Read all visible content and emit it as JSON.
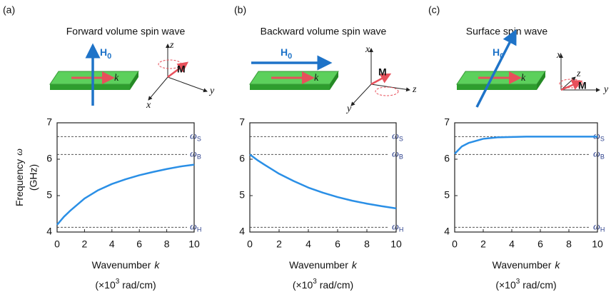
{
  "chart_data": [
    {
      "type": "line",
      "panel": "(a)",
      "title": "Forward volume spin wave",
      "field_label": {
        "symbol": "H",
        "sub": "0"
      },
      "wave_label": "k",
      "moment_label": "M",
      "coord_labels": [
        "z",
        "y",
        "x"
      ],
      "y_label": {
        "text": "Frequency",
        "symbol": "ω",
        "unit": "(GHz)"
      },
      "x_label": {
        "text": "Wavenumber",
        "symbol": "k",
        "unit_pre": "(×10",
        "unit_sup": "3",
        "unit_post": " rad/cm)"
      },
      "x": [
        0,
        0.5,
        1,
        2,
        3,
        4,
        5,
        6,
        7,
        8,
        9,
        10
      ],
      "series": [
        {
          "color": "#2a8fe6",
          "values": [
            4.2,
            4.42,
            4.6,
            4.92,
            5.15,
            5.32,
            5.45,
            5.56,
            5.65,
            5.73,
            5.8,
            5.85
          ]
        }
      ],
      "ref_lines": [
        {
          "symbol": "ω",
          "sub": "S",
          "value": 6.62
        },
        {
          "symbol": "ω",
          "sub": "B",
          "value": 6.13
        },
        {
          "symbol": "ω",
          "sub": "H",
          "value": 4.13
        }
      ],
      "xlim": [
        0,
        10
      ],
      "xticks": [
        0,
        2,
        4,
        6,
        8,
        10
      ],
      "ylim": [
        4,
        7
      ],
      "yticks": [
        4,
        5,
        6,
        7
      ]
    },
    {
      "type": "line",
      "panel": "(b)",
      "title": "Backward volume spin wave",
      "field_label": {
        "symbol": "H",
        "sub": "0"
      },
      "wave_label": "k",
      "moment_label": "M",
      "coord_labels": [
        "x",
        "z",
        "y"
      ],
      "x_label": {
        "text": "Wavenumber",
        "symbol": "k",
        "unit_pre": "(×10",
        "unit_sup": "3",
        "unit_post": " rad/cm)"
      },
      "x": [
        0,
        0.5,
        1,
        2,
        3,
        4,
        5,
        6,
        7,
        8,
        9,
        10
      ],
      "series": [
        {
          "color": "#2a8fe6",
          "values": [
            6.13,
            5.98,
            5.85,
            5.6,
            5.4,
            5.22,
            5.08,
            4.96,
            4.86,
            4.78,
            4.71,
            4.65
          ]
        }
      ],
      "ref_lines": [
        {
          "symbol": "ω",
          "sub": "S",
          "value": 6.62
        },
        {
          "symbol": "ω",
          "sub": "B",
          "value": 6.13
        },
        {
          "symbol": "ω",
          "sub": "H",
          "value": 4.13
        }
      ],
      "xlim": [
        0,
        10
      ],
      "xticks": [
        0,
        2,
        4,
        6,
        8,
        10
      ],
      "ylim": [
        4,
        7
      ],
      "yticks": [
        4,
        5,
        6,
        7
      ]
    },
    {
      "type": "line",
      "panel": "(c)",
      "title": "Surface spin wave",
      "field_label": {
        "symbol": "H",
        "sub": "0"
      },
      "wave_label": "k",
      "moment_label": "M",
      "coord_labels": [
        "x",
        "y",
        "z"
      ],
      "x_label": {
        "text": "Wavenumber",
        "symbol": "k",
        "unit_pre": "(×10",
        "unit_sup": "3",
        "unit_post": " rad/cm)"
      },
      "x": [
        0,
        0.5,
        1,
        2,
        3,
        4,
        5,
        6,
        7,
        8,
        9,
        10
      ],
      "series": [
        {
          "color": "#2a8fe6",
          "values": [
            6.15,
            6.35,
            6.45,
            6.56,
            6.6,
            6.61,
            6.62,
            6.62,
            6.62,
            6.62,
            6.62,
            6.62
          ]
        }
      ],
      "ref_lines": [
        {
          "symbol": "ω",
          "sub": "S",
          "value": 6.62
        },
        {
          "symbol": "ω",
          "sub": "B",
          "value": 6.13
        },
        {
          "symbol": "ω",
          "sub": "H",
          "value": 4.13
        }
      ],
      "xlim": [
        0,
        10
      ],
      "xticks": [
        0,
        2,
        4,
        6,
        8,
        10
      ],
      "ylim": [
        4,
        7
      ],
      "yticks": [
        4,
        5,
        6,
        7
      ]
    }
  ]
}
